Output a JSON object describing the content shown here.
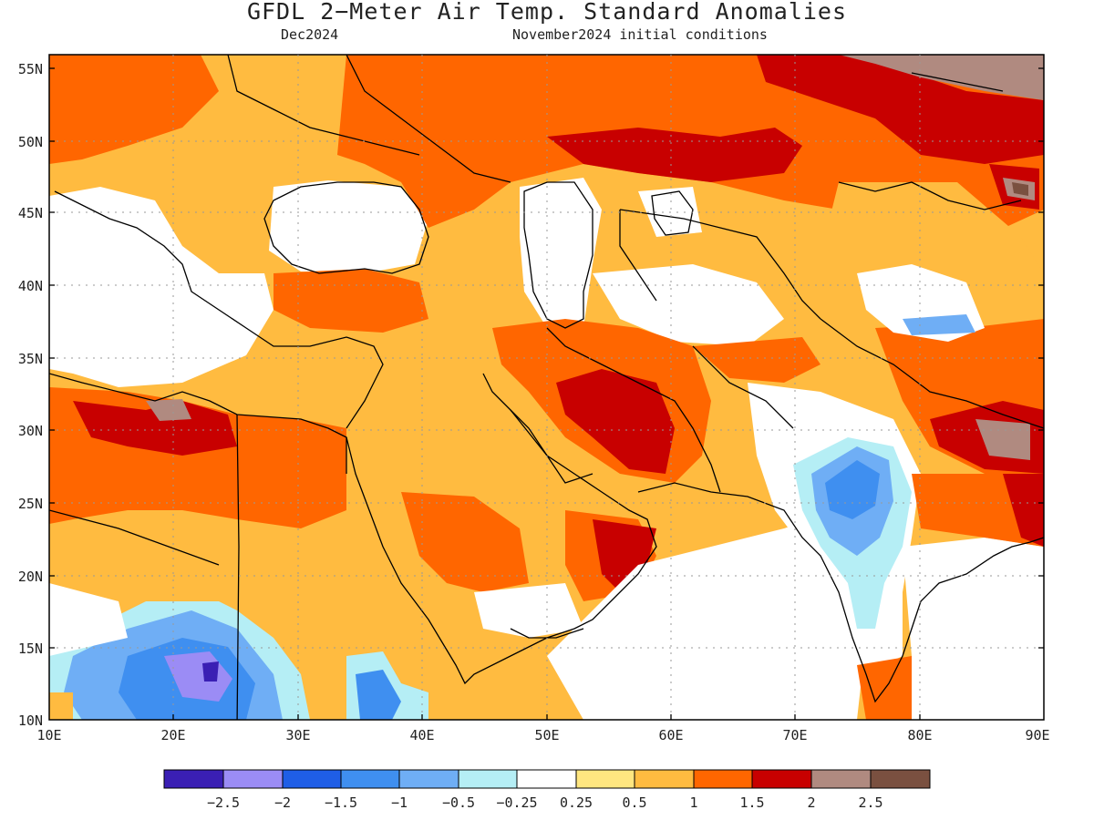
{
  "title": "GFDL 2−Meter Air Temp. Standard Anomalies",
  "subtitle_left": "Dec2024",
  "subtitle_right": "November2024 initial conditions",
  "y_axis_labels": [
    "55N",
    "50N",
    "45N",
    "40N",
    "35N",
    "30N",
    "25N",
    "20N",
    "15N",
    "10N"
  ],
  "x_axis_labels": [
    "10E",
    "20E",
    "30E",
    "40E",
    "50E",
    "60E",
    "70E",
    "80E",
    "90E"
  ],
  "legend": {
    "labels": [
      "−2.5",
      "−2",
      "−1.5",
      "−1",
      "−0.5",
      "−0.25",
      "0.25",
      "0.5",
      "1",
      "1.5",
      "2",
      "2.5"
    ],
    "colors": [
      "#3a1fb4",
      "#9b8cf5",
      "#1f5ee6",
      "#3f8ff0",
      "#6faef5",
      "#b5eef5",
      "#ffffff",
      "#ffe680",
      "#ffbb40",
      "#ff6600",
      "#c80000",
      "#b08a80",
      "#7a5040"
    ]
  },
  "colors": {
    "near_zero": "#ffffff",
    "warm_0_5": "#ffe680",
    "warm_1": "#ffbb40",
    "warm_1_5": "#ff6600",
    "warm_2": "#c80000",
    "warm_2_5": "#b08a80",
    "warm_extreme": "#7a5040",
    "cool_0_25": "#b5eef5",
    "cool_0_5": "#6faef5",
    "cool_1": "#3f8ff0",
    "cool_1_5": "#1f5ee6",
    "cool_2": "#9b8cf5",
    "cool_2_5": "#3a1fb4"
  }
}
